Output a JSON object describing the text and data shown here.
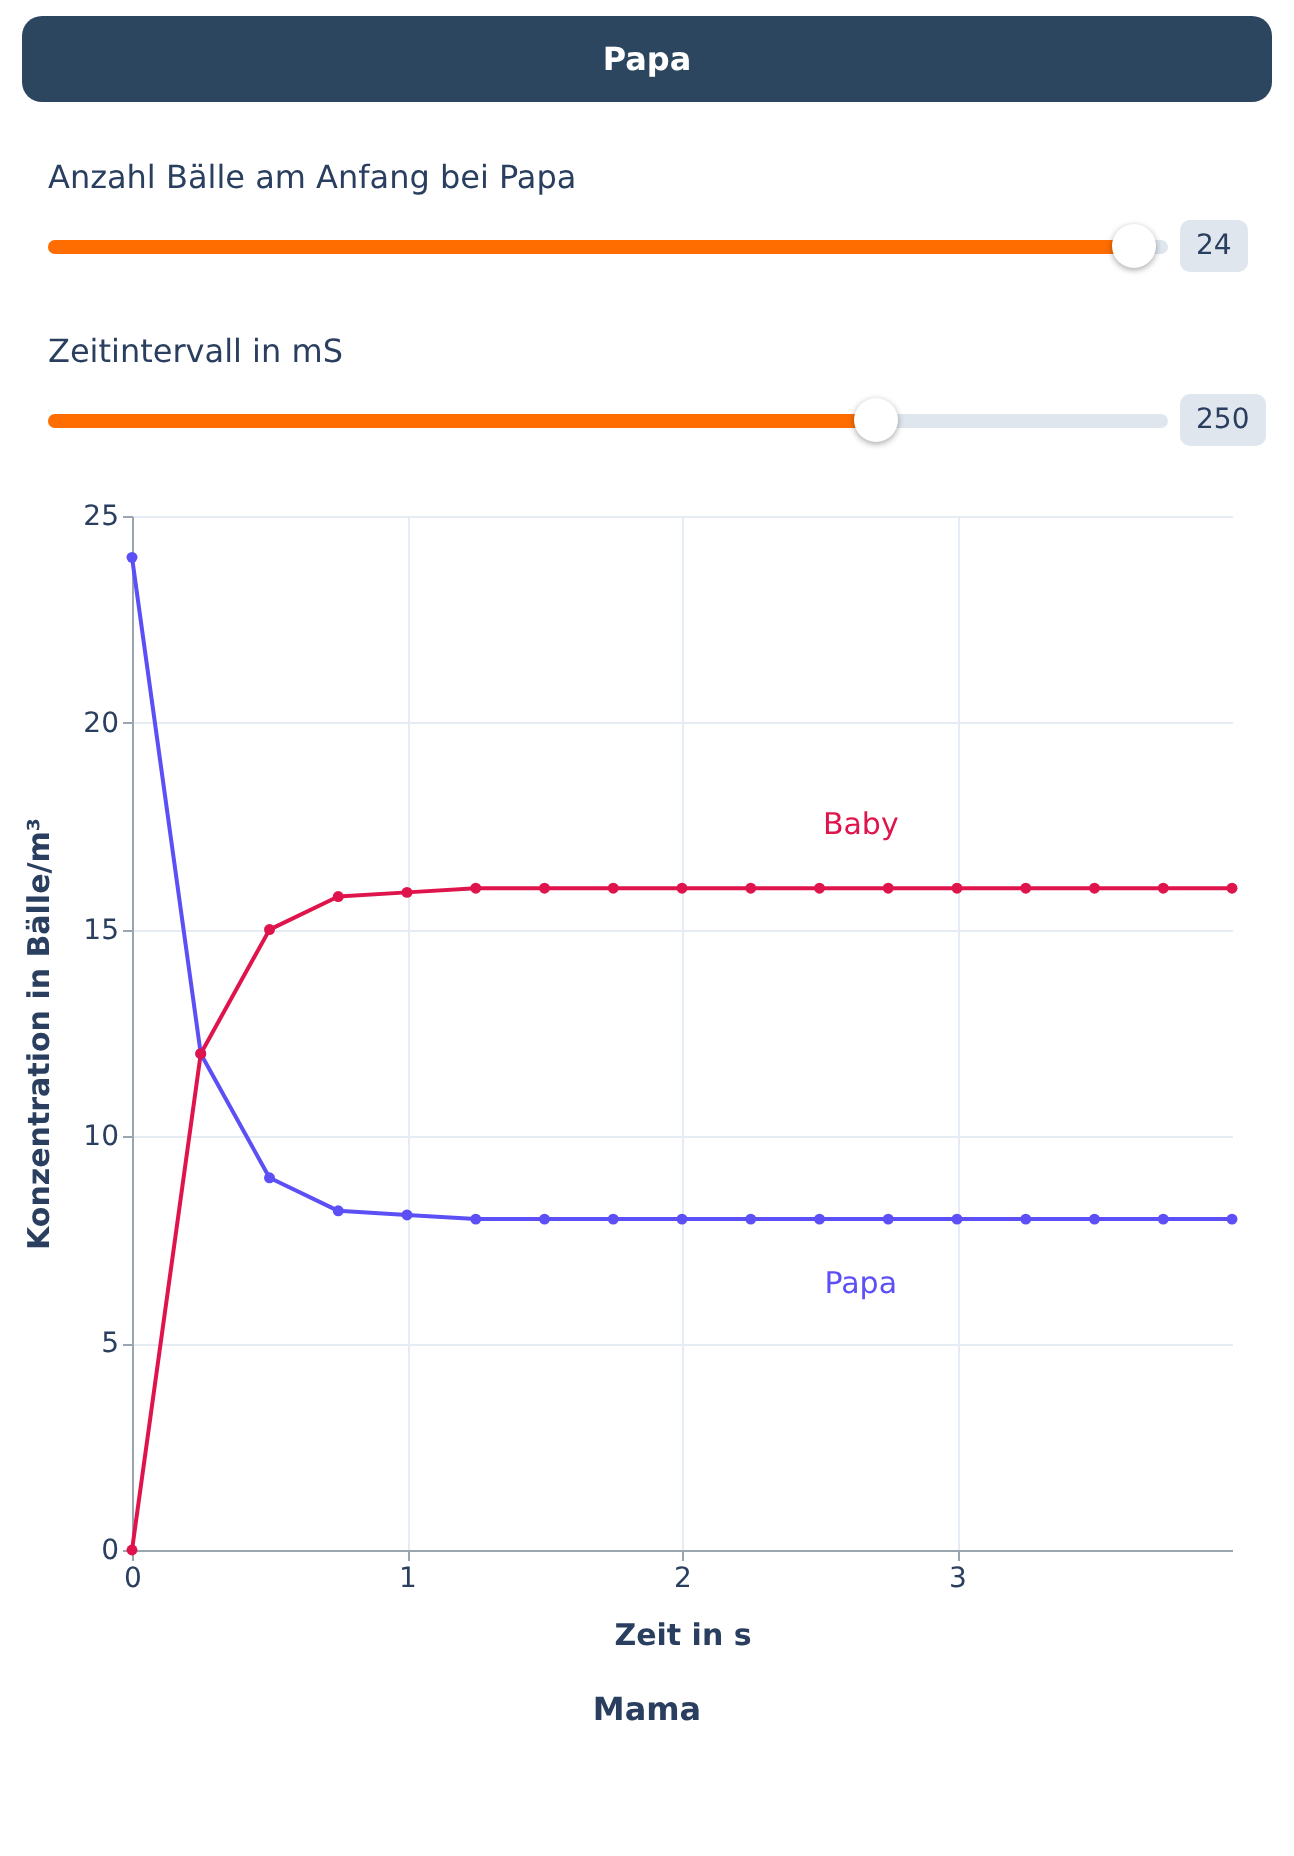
{
  "chart_data": {
    "type": "line",
    "title": "Papa",
    "xlabel": "Zeit in s",
    "ylabel": "Konzentration in Bälle/m³",
    "x": [
      0,
      0.25,
      0.5,
      0.75,
      1,
      1.25,
      1.5,
      1.75,
      2,
      2.25,
      2.5,
      2.75,
      3,
      3.25,
      3.5,
      3.75,
      4
    ],
    "series": [
      {
        "name": "Papa",
        "color": "#5b4ff5",
        "values": [
          24,
          12,
          9,
          8.2,
          8.1,
          8,
          8,
          8,
          8,
          8,
          8,
          8,
          8,
          8,
          8,
          8,
          8
        ]
      },
      {
        "name": "Baby",
        "color": "#e0144c",
        "values": [
          0,
          12,
          15,
          15.8,
          15.9,
          16,
          16,
          16,
          16,
          16,
          16,
          16,
          16,
          16,
          16,
          16,
          16
        ]
      }
    ],
    "xlim": [
      0,
      4
    ],
    "xticks": [
      0,
      1,
      2,
      3
    ],
    "ylim": [
      0,
      25
    ],
    "yticks": [
      0,
      5,
      10,
      15,
      20,
      25
    ],
    "grid": true,
    "marker": "circle",
    "line_style": "solid",
    "annotations": [
      "Anzahl Bälle am Anfang bei Papa",
      "24",
      "Zeitintervall in mS",
      "250",
      "Mama"
    ]
  }
}
